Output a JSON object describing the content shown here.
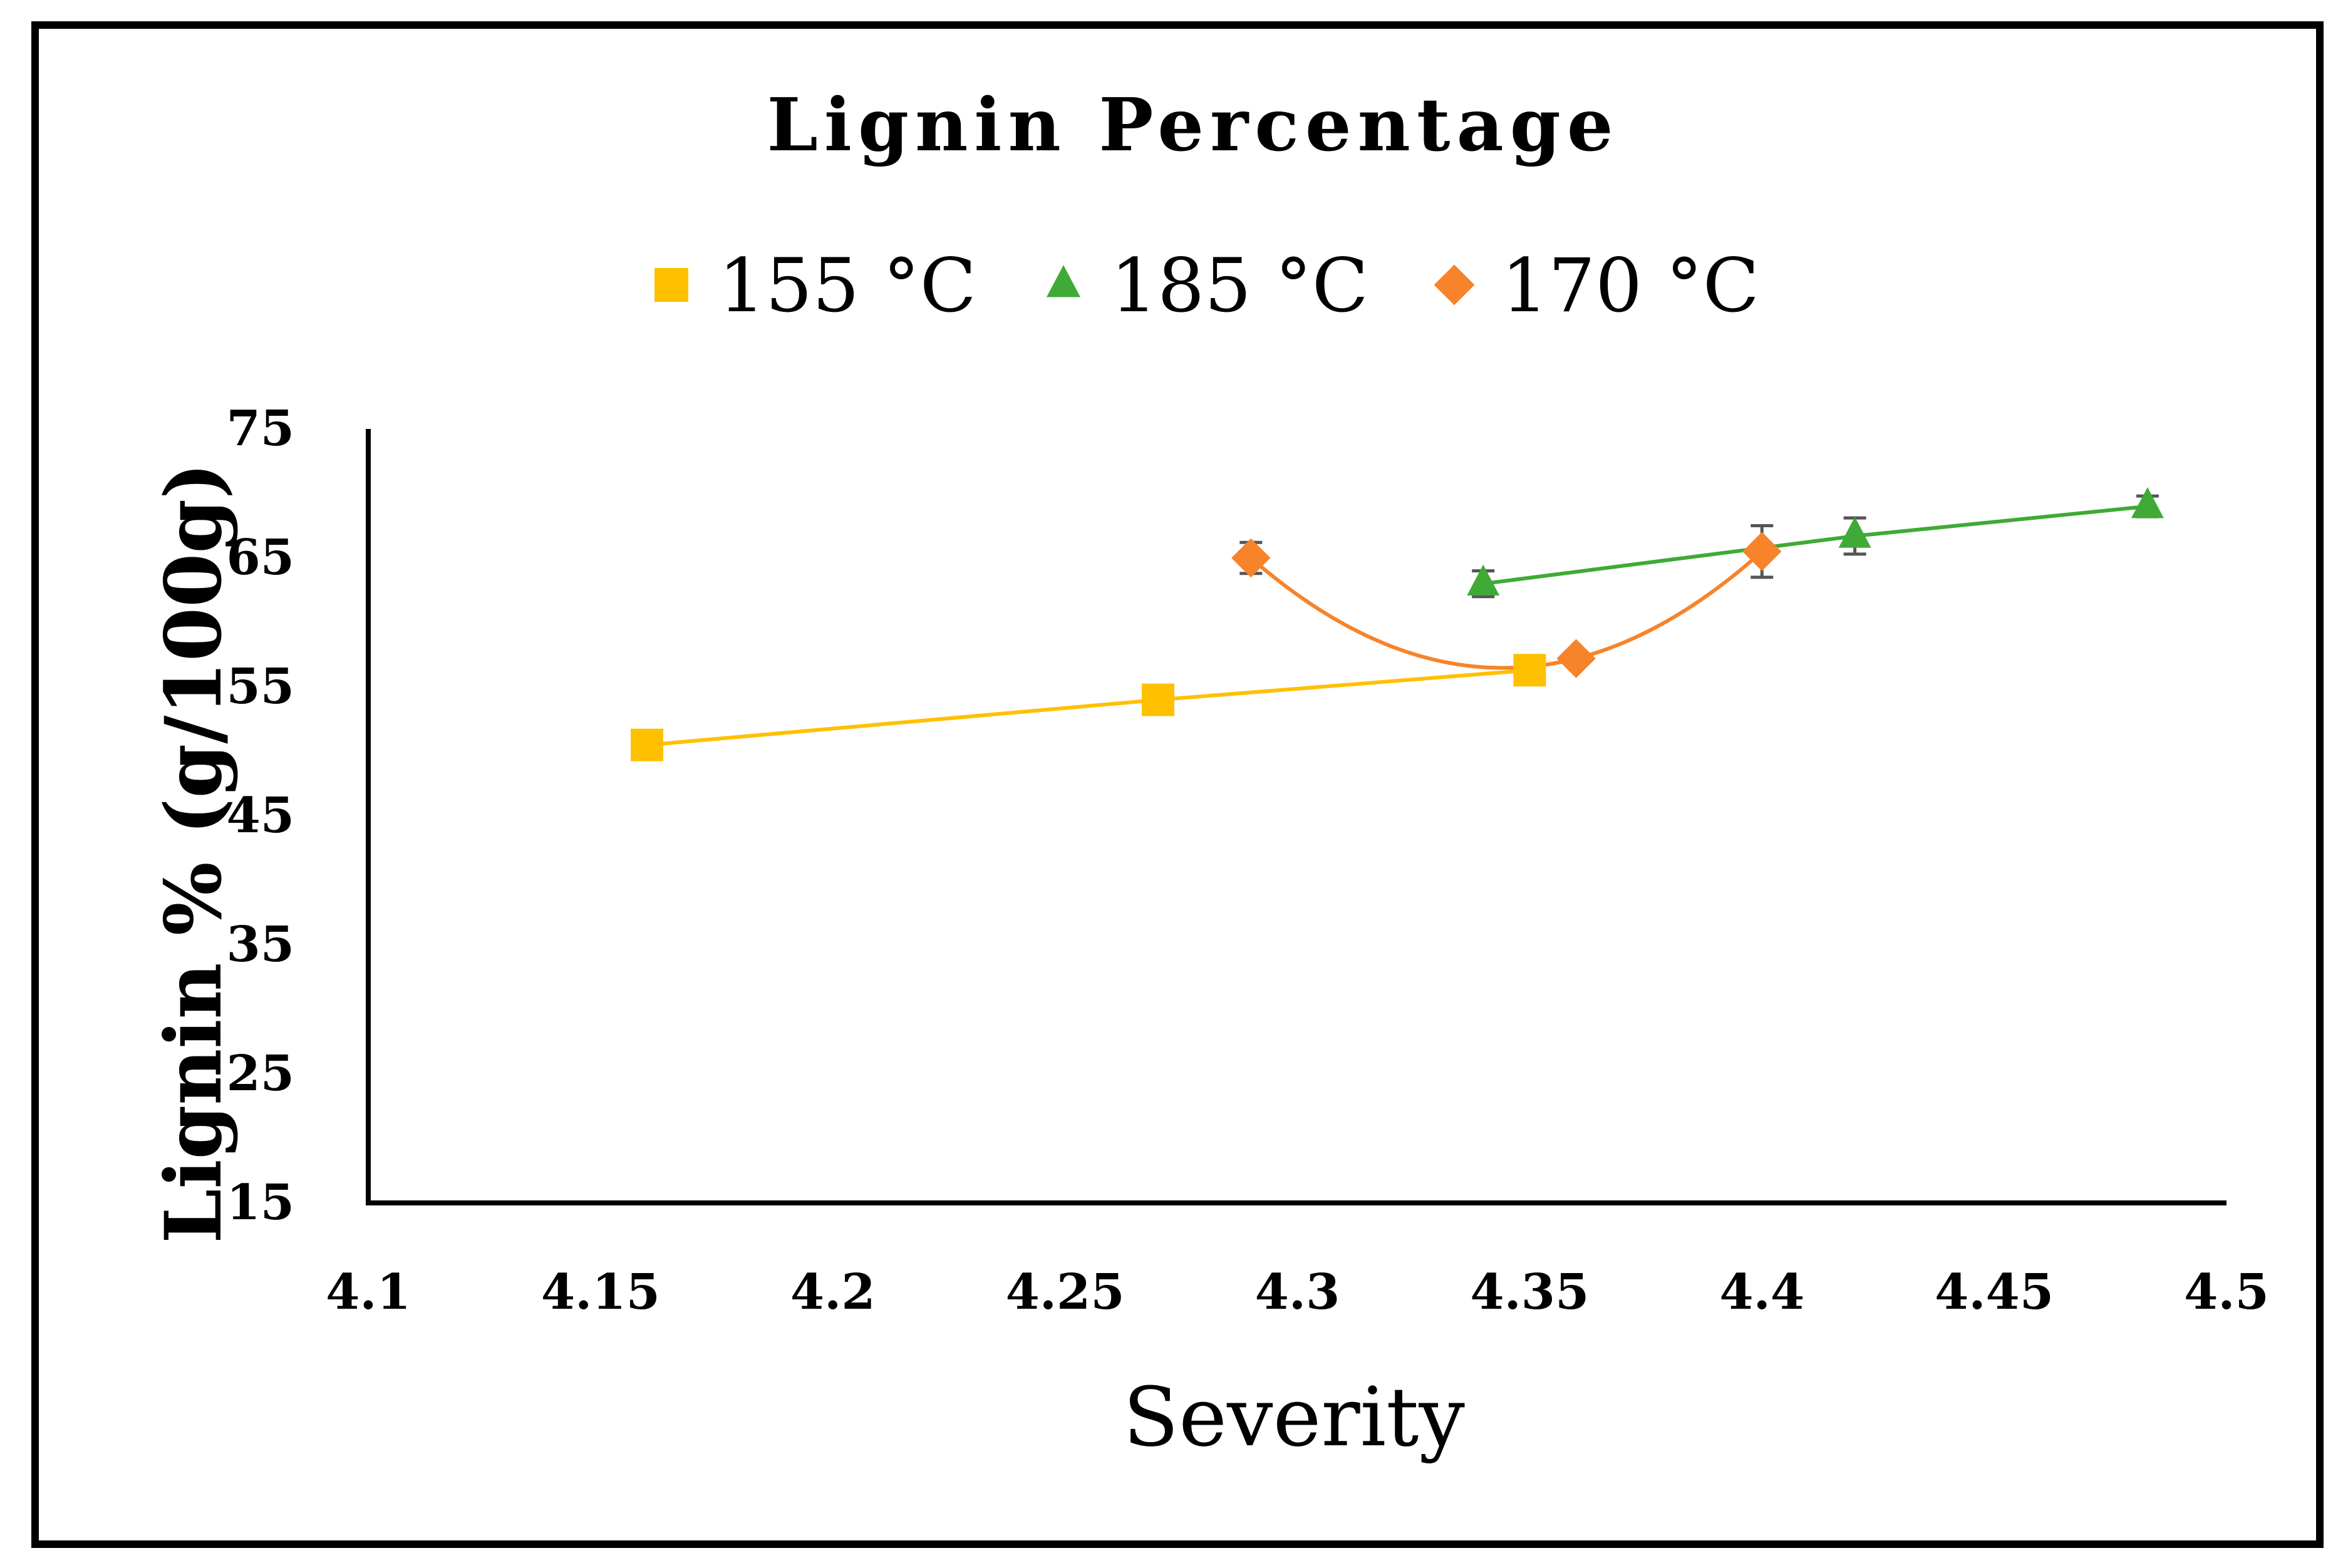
{
  "chart_data": {
    "type": "scatter",
    "title": "Lignin Percentage",
    "xlabel": "Severity",
    "ylabel": "Lignin % (g/100g)",
    "xlim": [
      4.1,
      4.5
    ],
    "ylim": [
      15,
      75
    ],
    "xticks": [
      4.1,
      4.15,
      4.2,
      4.25,
      4.3,
      4.35,
      4.4,
      4.45,
      4.5
    ],
    "yticks": [
      15,
      25,
      35,
      45,
      55,
      65,
      75
    ],
    "legend_position": "top",
    "series": [
      {
        "name": "155 °C",
        "marker": "square",
        "color": "#FFC000",
        "line": "straight",
        "x": [
          4.16,
          4.27,
          4.35
        ],
        "y": [
          50.5,
          54.0,
          56.3
        ],
        "err": [
          0.5,
          0.5,
          0.6
        ]
      },
      {
        "name": "185 °C",
        "marker": "triangle",
        "color": "#3FAA35",
        "line": "straight",
        "x": [
          4.34,
          4.42,
          4.483
        ],
        "y": [
          63.0,
          66.7,
          69.0
        ],
        "err": [
          1.0,
          1.4,
          0.8
        ]
      },
      {
        "name": "170 °C",
        "marker": "diamond",
        "color": "#F7832A",
        "line": "smooth",
        "x": [
          4.29,
          4.36,
          4.4
        ],
        "y": [
          65.0,
          57.2,
          65.5
        ],
        "err": [
          1.2,
          0.5,
          2.0
        ]
      }
    ]
  }
}
